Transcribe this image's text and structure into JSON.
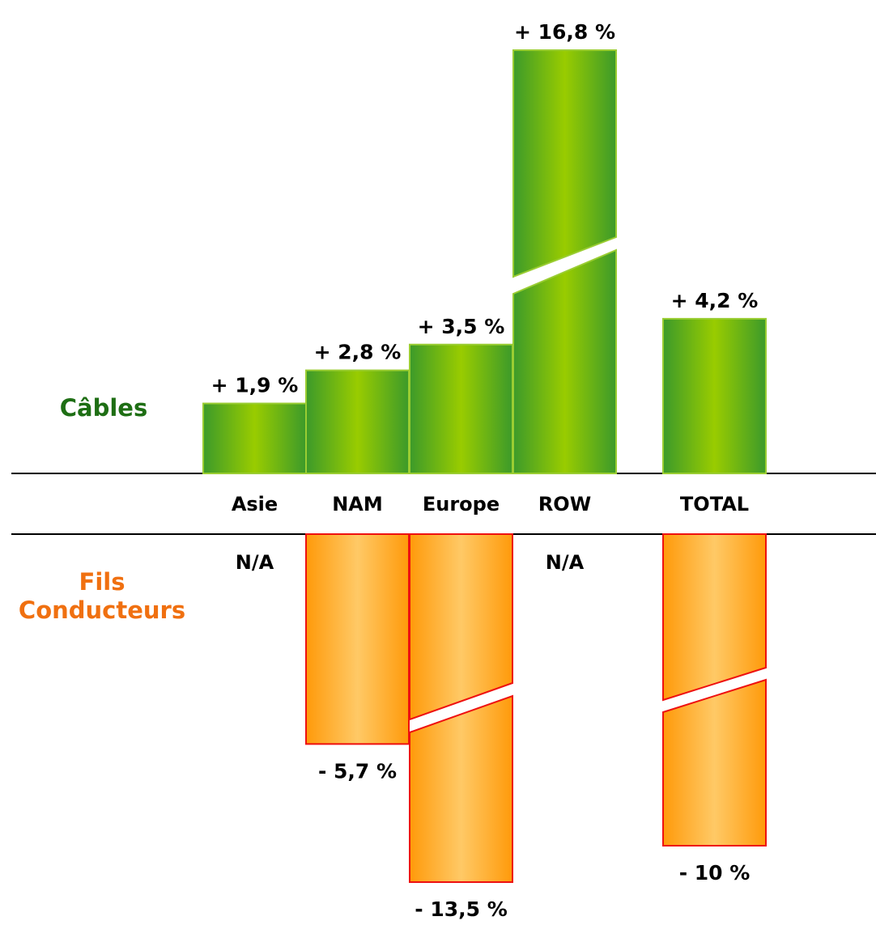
{
  "chart_data": {
    "type": "bar",
    "categories": [
      "Asie",
      "NAM",
      "Europe",
      "ROW",
      "TOTAL"
    ],
    "series": [
      {
        "name": "Câbles",
        "values": [
          1.9,
          2.8,
          3.5,
          16.8,
          4.2
        ],
        "labels": [
          "+ 1,9 %",
          "+ 2,8 %",
          "+ 3,5 %",
          "+ 16,8 %",
          "+ 4,2 %"
        ],
        "color": "#8dc63f",
        "broken": [
          false,
          false,
          false,
          true,
          false
        ]
      },
      {
        "name": "Fils Conducteurs",
        "values": [
          null,
          -5.7,
          -13.5,
          null,
          -10
        ],
        "labels": [
          "N/A",
          "- 5,7 %",
          "- 13,5 %",
          "N/A",
          "- 10 %"
        ],
        "color": "#ffa520",
        "broken": [
          false,
          false,
          true,
          false,
          true
        ]
      }
    ]
  },
  "series_titles": {
    "top": "Câbles",
    "bottom_line1": "Fils",
    "bottom_line2": "Conducteurs"
  },
  "colors": {
    "green_dark": "#3c9a2a",
    "green_light": "#99cc00",
    "green_border": "#9acd32",
    "orange_dark": "#ff9a0a",
    "orange_light": "#ffc966",
    "orange_border": "#ee1010",
    "title_green": "#1e6e14",
    "title_orange": "#f07010"
  }
}
